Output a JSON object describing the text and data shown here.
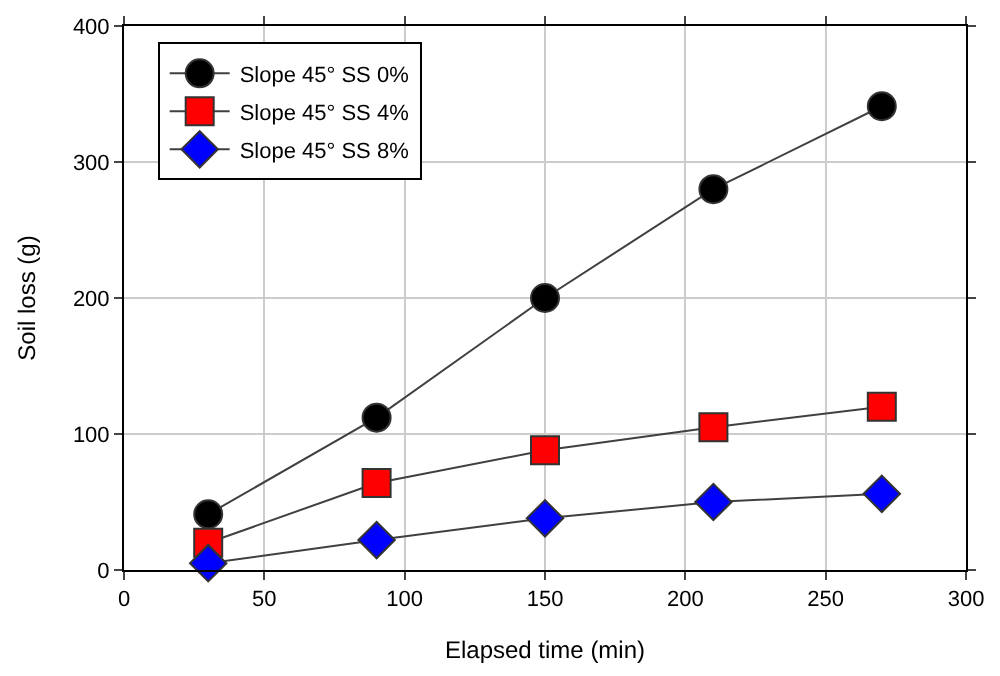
{
  "chart_data": {
    "type": "line",
    "xlabel": "Elapsed time (min)",
    "ylabel": "Soil loss (g)",
    "x": [
      30,
      90,
      150,
      210,
      270
    ],
    "series": [
      {
        "name": "Slope 45° SS 0%",
        "color": "#000000",
        "marker": "circle",
        "values": [
          41,
          112,
          200,
          280,
          341
        ]
      },
      {
        "name": "Slope 45° SS 4%",
        "color": "#ff0000",
        "marker": "square",
        "values": [
          20,
          64,
          88,
          105,
          120
        ]
      },
      {
        "name": "Slope 45° SS 8%",
        "color": "#0000ff",
        "marker": "diamond",
        "values": [
          5,
          22,
          38,
          50,
          56
        ]
      }
    ],
    "xlim": [
      0,
      300
    ],
    "xticks": [
      0,
      50,
      100,
      150,
      200,
      250,
      300
    ],
    "ylim": [
      0,
      400
    ],
    "yticks": [
      0,
      100,
      200,
      300,
      400
    ],
    "grid": true,
    "legend": "top left",
    "line_style": "solid"
  }
}
